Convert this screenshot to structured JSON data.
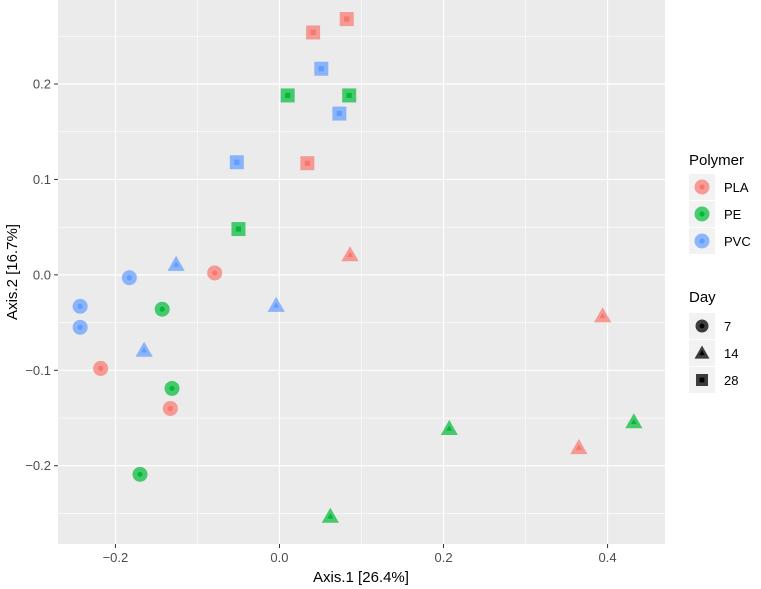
{
  "chart_data": {
    "type": "scatter",
    "title": "",
    "xlabel": "Axis.1   [26.4%]",
    "ylabel": "Axis.2   [16.7%]",
    "xlim": [
      -0.27,
      0.47
    ],
    "ylim": [
      -0.282,
      0.288
    ],
    "x_ticks": [
      -0.2,
      0.0,
      0.2,
      0.4
    ],
    "x_tick_labels": [
      "−0.2",
      "0.0",
      "0.2",
      "0.4"
    ],
    "y_ticks": [
      -0.2,
      -0.1,
      0.0,
      0.1,
      0.2
    ],
    "y_tick_labels": [
      "−0.2",
      "−0.1",
      "0.0",
      "0.1",
      "0.2"
    ],
    "grid": true,
    "legend_position": "right",
    "colors": {
      "PLA": "#F8766D",
      "PE": "#00BA38",
      "PVC": "#619CFF"
    },
    "legends": [
      {
        "title": "Polymer",
        "type": "color",
        "items": [
          {
            "label": "PLA",
            "key": "PLA"
          },
          {
            "label": "PE",
            "key": "PE"
          },
          {
            "label": "PVC",
            "key": "PVC"
          }
        ]
      },
      {
        "title": "Day",
        "type": "shape",
        "items": [
          {
            "label": "7",
            "shape": "circle"
          },
          {
            "label": "14",
            "shape": "triangle"
          },
          {
            "label": "28",
            "shape": "square"
          }
        ]
      }
    ],
    "points": [
      {
        "x": 0.082,
        "y": 0.268,
        "polymer": "PLA",
        "day": "28"
      },
      {
        "x": 0.041,
        "y": 0.254,
        "polymer": "PLA",
        "day": "28"
      },
      {
        "x": 0.034,
        "y": 0.117,
        "polymer": "PLA",
        "day": "28"
      },
      {
        "x": 0.086,
        "y": 0.021,
        "polymer": "PLA",
        "day": "14"
      },
      {
        "x": 0.394,
        "y": -0.043,
        "polymer": "PLA",
        "day": "14"
      },
      {
        "x": 0.365,
        "y": -0.181,
        "polymer": "PLA",
        "day": "14"
      },
      {
        "x": -0.079,
        "y": 0.002,
        "polymer": "PLA",
        "day": "7"
      },
      {
        "x": -0.218,
        "y": -0.098,
        "polymer": "PLA",
        "day": "7"
      },
      {
        "x": -0.133,
        "y": -0.14,
        "polymer": "PLA",
        "day": "7"
      },
      {
        "x": 0.01,
        "y": 0.188,
        "polymer": "PE",
        "day": "28"
      },
      {
        "x": 0.085,
        "y": 0.188,
        "polymer": "PE",
        "day": "28"
      },
      {
        "x": -0.05,
        "y": 0.048,
        "polymer": "PE",
        "day": "28"
      },
      {
        "x": 0.207,
        "y": -0.161,
        "polymer": "PE",
        "day": "14"
      },
      {
        "x": 0.432,
        "y": -0.154,
        "polymer": "PE",
        "day": "14"
      },
      {
        "x": 0.062,
        "y": -0.253,
        "polymer": "PE",
        "day": "14"
      },
      {
        "x": -0.143,
        "y": -0.036,
        "polymer": "PE",
        "day": "7"
      },
      {
        "x": -0.131,
        "y": -0.119,
        "polymer": "PE",
        "day": "7"
      },
      {
        "x": -0.17,
        "y": -0.209,
        "polymer": "PE",
        "day": "7"
      },
      {
        "x": 0.051,
        "y": 0.216,
        "polymer": "PVC",
        "day": "28"
      },
      {
        "x": 0.073,
        "y": 0.169,
        "polymer": "PVC",
        "day": "28"
      },
      {
        "x": -0.052,
        "y": 0.118,
        "polymer": "PVC",
        "day": "28"
      },
      {
        "x": -0.126,
        "y": 0.011,
        "polymer": "PVC",
        "day": "14"
      },
      {
        "x": -0.004,
        "y": -0.032,
        "polymer": "PVC",
        "day": "14"
      },
      {
        "x": -0.165,
        "y": -0.079,
        "polymer": "PVC",
        "day": "14"
      },
      {
        "x": -0.183,
        "y": -0.003,
        "polymer": "PVC",
        "day": "7"
      },
      {
        "x": -0.243,
        "y": -0.033,
        "polymer": "PVC",
        "day": "7"
      },
      {
        "x": -0.243,
        "y": -0.055,
        "polymer": "PVC",
        "day": "7"
      }
    ]
  }
}
